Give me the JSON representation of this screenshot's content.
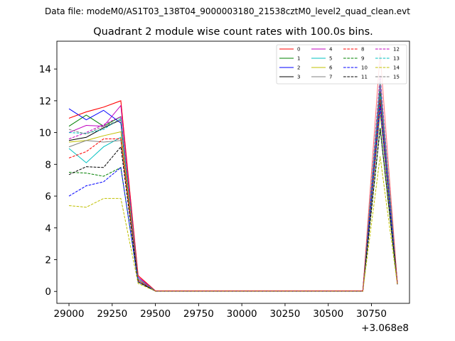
{
  "suptitle": "Data file: modeM0/AS1T03_138T04_9000003180_21538cztM0_level2_quad_clean.evt",
  "chart_data": {
    "type": "line",
    "title": "Quadrant 2 module wise count rates with 100.0s bins.",
    "xlabel": "",
    "ylabel": "",
    "x_offset_label": "+3.068e8",
    "x": [
      29000,
      29100,
      29200,
      29300,
      29400,
      29500,
      29600,
      29700,
      29800,
      29900,
      30000,
      30100,
      30200,
      30300,
      30400,
      30500,
      30600,
      30700,
      30800,
      30900
    ],
    "xlim": [
      28930,
      30970
    ],
    "ylim": [
      -0.75,
      15.75
    ],
    "xticks": [
      29000,
      29250,
      29500,
      29750,
      30000,
      30250,
      30500,
      30750
    ],
    "xtick_labels": [
      "29000",
      "29250",
      "29500",
      "29750",
      "30000",
      "30250",
      "30500",
      "30750"
    ],
    "yticks": [
      0,
      2,
      4,
      6,
      8,
      10,
      12,
      14
    ],
    "ytick_labels": [
      "0",
      "2",
      "4",
      "6",
      "8",
      "10",
      "12",
      "14"
    ],
    "legend_position": "top-right",
    "legend_columns": 4,
    "grid": false,
    "series": [
      {
        "name": "0",
        "color": "#ff0000",
        "dash": "solid",
        "alpha": 1.0,
        "values": [
          10.9,
          11.3,
          11.6,
          12.0,
          1.0,
          0.04,
          0.04,
          0.04,
          0.04,
          0.04,
          0.04,
          0.04,
          0.04,
          0.04,
          0.04,
          0.04,
          0.04,
          0.04,
          12.4,
          0.5
        ]
      },
      {
        "name": "1",
        "color": "#008000",
        "dash": "solid",
        "alpha": 1.0,
        "values": [
          10.4,
          11.1,
          10.4,
          11.0,
          0.8,
          0.03,
          0.03,
          0.03,
          0.03,
          0.03,
          0.03,
          0.03,
          0.03,
          0.03,
          0.03,
          0.03,
          0.03,
          0.03,
          12.6,
          0.5
        ]
      },
      {
        "name": "2",
        "color": "#0000ff",
        "dash": "solid",
        "alpha": 1.0,
        "values": [
          11.5,
          10.8,
          11.4,
          10.6,
          0.9,
          0.03,
          0.03,
          0.03,
          0.03,
          0.03,
          0.03,
          0.03,
          0.03,
          0.03,
          0.03,
          0.03,
          0.03,
          0.03,
          13.1,
          0.5
        ]
      },
      {
        "name": "3",
        "color": "#000000",
        "dash": "solid",
        "alpha": 1.0,
        "values": [
          9.5,
          9.7,
          10.3,
          10.8,
          0.7,
          0.02,
          0.02,
          0.02,
          0.02,
          0.02,
          0.02,
          0.02,
          0.02,
          0.02,
          0.02,
          0.02,
          0.02,
          0.02,
          12.0,
          0.5
        ]
      },
      {
        "name": "4",
        "color": "#c000c0",
        "dash": "solid",
        "alpha": 1.0,
        "values": [
          10.0,
          10.45,
          10.4,
          11.7,
          0.9,
          0.03,
          0.03,
          0.03,
          0.03,
          0.03,
          0.03,
          0.03,
          0.03,
          0.03,
          0.03,
          0.03,
          0.03,
          0.03,
          13.0,
          0.5
        ]
      },
      {
        "name": "5",
        "color": "#00c0c0",
        "dash": "solid",
        "alpha": 1.0,
        "values": [
          9.0,
          8.1,
          9.1,
          9.7,
          0.7,
          0.02,
          0.02,
          0.02,
          0.02,
          0.02,
          0.02,
          0.02,
          0.02,
          0.02,
          0.02,
          0.02,
          0.02,
          0.02,
          12.3,
          0.5
        ]
      },
      {
        "name": "6",
        "color": "#c0c000",
        "dash": "solid",
        "alpha": 1.0,
        "values": [
          9.4,
          9.5,
          9.8,
          10.05,
          0.7,
          0.02,
          0.02,
          0.02,
          0.02,
          0.02,
          0.02,
          0.02,
          0.02,
          0.02,
          0.02,
          0.02,
          0.02,
          0.02,
          11.2,
          0.5
        ]
      },
      {
        "name": "7",
        "color": "#808080",
        "dash": "solid",
        "alpha": 1.0,
        "values": [
          9.1,
          9.5,
          9.4,
          9.5,
          0.7,
          0.02,
          0.02,
          0.02,
          0.02,
          0.02,
          0.02,
          0.02,
          0.02,
          0.02,
          0.02,
          0.02,
          0.02,
          0.02,
          11.4,
          0.5
        ]
      },
      {
        "name": "8",
        "color": "#ff0000",
        "dash": "dashed",
        "alpha": 1.0,
        "values": [
          8.4,
          8.8,
          9.6,
          9.6,
          0.7,
          0.02,
          0.02,
          0.02,
          0.02,
          0.02,
          0.02,
          0.02,
          0.02,
          0.02,
          0.02,
          0.02,
          0.02,
          0.02,
          12.1,
          0.45
        ]
      },
      {
        "name": "9",
        "color": "#008000",
        "dash": "dashed",
        "alpha": 1.0,
        "values": [
          7.5,
          7.45,
          7.25,
          7.8,
          0.6,
          0.02,
          0.02,
          0.02,
          0.02,
          0.02,
          0.02,
          0.02,
          0.02,
          0.02,
          0.02,
          0.02,
          0.02,
          0.02,
          10.3,
          0.45
        ]
      },
      {
        "name": "10",
        "color": "#0000ff",
        "dash": "dashed",
        "alpha": 1.0,
        "values": [
          6.0,
          6.65,
          6.9,
          7.8,
          0.6,
          0.02,
          0.02,
          0.02,
          0.02,
          0.02,
          0.02,
          0.02,
          0.02,
          0.02,
          0.02,
          0.02,
          0.02,
          0.02,
          11.7,
          0.45
        ]
      },
      {
        "name": "11",
        "color": "#000000",
        "dash": "dashed",
        "alpha": 1.0,
        "values": [
          7.35,
          7.85,
          7.8,
          9.1,
          0.6,
          0.02,
          0.02,
          0.02,
          0.02,
          0.02,
          0.02,
          0.02,
          0.02,
          0.02,
          0.02,
          0.02,
          0.02,
          0.02,
          10.25,
          0.45
        ]
      },
      {
        "name": "12",
        "color": "#c000c0",
        "dash": "dashed",
        "alpha": 1.0,
        "values": [
          9.6,
          10.0,
          10.5,
          11.0,
          0.8,
          0.03,
          0.03,
          0.03,
          0.03,
          0.03,
          0.03,
          0.03,
          0.03,
          0.03,
          0.03,
          0.03,
          0.03,
          0.03,
          13.6,
          0.5
        ]
      },
      {
        "name": "13",
        "color": "#00c0c0",
        "dash": "dashed",
        "alpha": 1.0,
        "values": [
          10.0,
          9.95,
          10.2,
          10.9,
          0.8,
          0.03,
          0.03,
          0.03,
          0.03,
          0.03,
          0.03,
          0.03,
          0.03,
          0.03,
          0.03,
          0.03,
          0.03,
          0.03,
          13.2,
          0.5
        ]
      },
      {
        "name": "14",
        "color": "#c0c000",
        "dash": "dashed",
        "alpha": 1.0,
        "values": [
          5.4,
          5.3,
          5.85,
          5.85,
          0.5,
          0.02,
          0.02,
          0.02,
          0.02,
          0.02,
          0.02,
          0.02,
          0.02,
          0.02,
          0.02,
          0.02,
          0.02,
          0.02,
          8.5,
          0.4
        ]
      },
      {
        "name": "15",
        "color": "#808080",
        "dash": "dashed",
        "alpha": 1.0,
        "values": [
          10.2,
          9.9,
          10.4,
          10.8,
          0.8,
          0.03,
          0.03,
          0.03,
          0.03,
          0.03,
          0.03,
          0.03,
          0.03,
          0.03,
          0.03,
          0.03,
          0.03,
          0.03,
          13.3,
          0.5
        ]
      },
      {
        "name": "",
        "color": "#ff0000",
        "dash": "solid",
        "alpha": 0.55,
        "legend": false,
        "values": [
          10.9,
          11.3,
          11.6,
          12.0,
          1.0,
          0.04,
          0.04,
          0.04,
          0.04,
          0.04,
          0.04,
          0.04,
          0.04,
          0.04,
          0.04,
          0.04,
          0.04,
          0.04,
          15.0,
          0.5
        ]
      }
    ]
  }
}
